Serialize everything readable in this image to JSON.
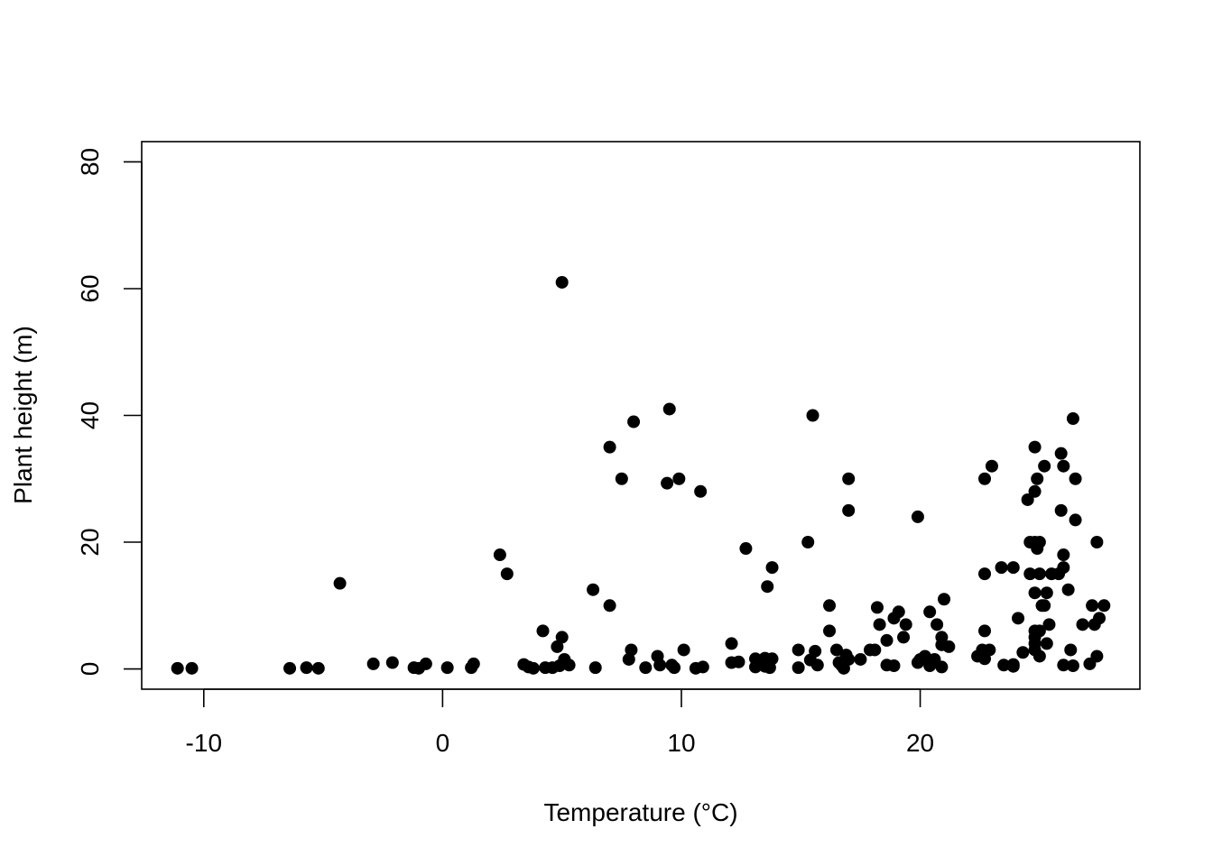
{
  "chart_data": {
    "type": "scatter",
    "title": "",
    "xlabel": "Temperature (°C)",
    "ylabel": "Plant height (m)",
    "xlim": [
      -12.6,
      29.2
    ],
    "ylim": [
      -3.2,
      83.2
    ],
    "x_ticks": [
      -10,
      0,
      10,
      20
    ],
    "x_tick_labels": [
      "-10",
      "0",
      "10",
      "20"
    ],
    "y_ticks": [
      0,
      20,
      40,
      60,
      80
    ],
    "y_tick_labels": [
      "0",
      "20",
      "40",
      "60",
      "80"
    ],
    "grid": false,
    "legend": "none",
    "marker_color": "#000000",
    "points": [
      [
        -11.1,
        0.1
      ],
      [
        -10.5,
        0.1
      ],
      [
        -6.4,
        0.1
      ],
      [
        -5.7,
        0.2
      ],
      [
        -5.2,
        0.1
      ],
      [
        -4.3,
        13.5
      ],
      [
        -2.9,
        0.8
      ],
      [
        -2.1,
        1.0
      ],
      [
        -1.2,
        0.2
      ],
      [
        -1.0,
        0.1
      ],
      [
        -0.7,
        0.8
      ],
      [
        0.2,
        0.2
      ],
      [
        1.2,
        0.2
      ],
      [
        1.3,
        0.8
      ],
      [
        2.4,
        18.0
      ],
      [
        2.7,
        15.0
      ],
      [
        3.4,
        0.7
      ],
      [
        3.6,
        0.3
      ],
      [
        3.8,
        0.1
      ],
      [
        4.2,
        6.0
      ],
      [
        4.3,
        0.2
      ],
      [
        4.6,
        0.2
      ],
      [
        4.8,
        3.5
      ],
      [
        4.9,
        0.5
      ],
      [
        5.0,
        5.0
      ],
      [
        5.0,
        61.0
      ],
      [
        5.1,
        1.5
      ],
      [
        5.3,
        0.6
      ],
      [
        6.3,
        12.5
      ],
      [
        6.4,
        0.2
      ],
      [
        7.0,
        10.0
      ],
      [
        7.0,
        35.0
      ],
      [
        7.5,
        30.0
      ],
      [
        7.8,
        1.5
      ],
      [
        7.9,
        3.0
      ],
      [
        8.0,
        39.0
      ],
      [
        8.5,
        0.2
      ],
      [
        9.0,
        2.0
      ],
      [
        9.1,
        0.6
      ],
      [
        9.4,
        29.3
      ],
      [
        9.5,
        41.0
      ],
      [
        9.6,
        0.6
      ],
      [
        9.7,
        0.2
      ],
      [
        9.9,
        30.0
      ],
      [
        10.1,
        3.0
      ],
      [
        10.6,
        0.1
      ],
      [
        10.8,
        28.0
      ],
      [
        10.9,
        0.3
      ],
      [
        12.1,
        4.0
      ],
      [
        12.1,
        1.0
      ],
      [
        12.4,
        1.1
      ],
      [
        12.7,
        19.0
      ],
      [
        13.1,
        0.3
      ],
      [
        13.1,
        1.6
      ],
      [
        13.5,
        0.4
      ],
      [
        13.5,
        1.7
      ],
      [
        13.6,
        13.0
      ],
      [
        13.7,
        0.2
      ],
      [
        13.8,
        16.0
      ],
      [
        13.8,
        1.6
      ],
      [
        14.9,
        0.2
      ],
      [
        14.9,
        3.0
      ],
      [
        15.3,
        20.0
      ],
      [
        15.4,
        1.4
      ],
      [
        15.5,
        40.0
      ],
      [
        15.6,
        2.8
      ],
      [
        15.7,
        0.6
      ],
      [
        16.2,
        10.0
      ],
      [
        16.2,
        6.0
      ],
      [
        16.5,
        3.0
      ],
      [
        16.6,
        1.0
      ],
      [
        16.7,
        0.6
      ],
      [
        16.8,
        0.1
      ],
      [
        16.9,
        2.2
      ],
      [
        17.0,
        1.5
      ],
      [
        17.0,
        30.0
      ],
      [
        17.0,
        25.0
      ],
      [
        17.5,
        1.5
      ],
      [
        17.9,
        3.0
      ],
      [
        18.1,
        3.0
      ],
      [
        18.2,
        9.7
      ],
      [
        18.3,
        7.0
      ],
      [
        18.6,
        4.5
      ],
      [
        18.6,
        0.6
      ],
      [
        18.9,
        0.5
      ],
      [
        18.9,
        8.0
      ],
      [
        19.1,
        9.0
      ],
      [
        19.3,
        5.0
      ],
      [
        19.4,
        7.0
      ],
      [
        19.9,
        24.0
      ],
      [
        19.9,
        1.0
      ],
      [
        20.0,
        1.5
      ],
      [
        20.2,
        2.0
      ],
      [
        20.4,
        9.0
      ],
      [
        20.4,
        0.5
      ],
      [
        20.6,
        1.5
      ],
      [
        20.7,
        7.0
      ],
      [
        20.9,
        3.8
      ],
      [
        20.9,
        5.0
      ],
      [
        20.9,
        0.3
      ],
      [
        21.0,
        11.0
      ],
      [
        21.2,
        3.5
      ],
      [
        22.4,
        2.0
      ],
      [
        22.6,
        3.0
      ],
      [
        22.7,
        6.0
      ],
      [
        22.7,
        1.6
      ],
      [
        22.7,
        15.0
      ],
      [
        22.7,
        30.0
      ],
      [
        22.9,
        3.0
      ],
      [
        23.0,
        32.0
      ],
      [
        23.4,
        16.0
      ],
      [
        23.5,
        0.6
      ],
      [
        23.9,
        16.0
      ],
      [
        23.9,
        0.4
      ],
      [
        23.9,
        0.7
      ],
      [
        24.1,
        8.0
      ],
      [
        24.3,
        2.6
      ],
      [
        24.5,
        26.7
      ],
      [
        24.6,
        20.0
      ],
      [
        24.6,
        15.0
      ],
      [
        24.8,
        35.0
      ],
      [
        24.8,
        28.0
      ],
      [
        24.8,
        20.0
      ],
      [
        24.8,
        12.0
      ],
      [
        24.8,
        6.0
      ],
      [
        24.8,
        5.0
      ],
      [
        24.8,
        4.0
      ],
      [
        24.8,
        3.0
      ],
      [
        24.9,
        30.0
      ],
      [
        24.9,
        19.0
      ],
      [
        25.0,
        20.0
      ],
      [
        25.0,
        15.0
      ],
      [
        25.0,
        6.0
      ],
      [
        25.0,
        2.0
      ],
      [
        25.1,
        10.0
      ],
      [
        25.2,
        32.0
      ],
      [
        25.2,
        10.0
      ],
      [
        25.3,
        4.0
      ],
      [
        25.3,
        12.0
      ],
      [
        25.4,
        7.0
      ],
      [
        25.5,
        15.0
      ],
      [
        25.8,
        15.0
      ],
      [
        25.9,
        34.0
      ],
      [
        25.9,
        25.0
      ],
      [
        26.0,
        32.0
      ],
      [
        26.0,
        16.0
      ],
      [
        26.0,
        18.0
      ],
      [
        26.0,
        0.6
      ],
      [
        26.2,
        12.5
      ],
      [
        26.3,
        3.0
      ],
      [
        26.4,
        0.5
      ],
      [
        26.4,
        39.5
      ],
      [
        26.5,
        30.0
      ],
      [
        26.5,
        23.5
      ],
      [
        26.8,
        7.0
      ],
      [
        27.1,
        0.8
      ],
      [
        27.2,
        10.0
      ],
      [
        27.3,
        7.0
      ],
      [
        27.4,
        2.0
      ],
      [
        27.4,
        20.0
      ],
      [
        27.5,
        8.0
      ],
      [
        27.7,
        10.0
      ]
    ]
  }
}
